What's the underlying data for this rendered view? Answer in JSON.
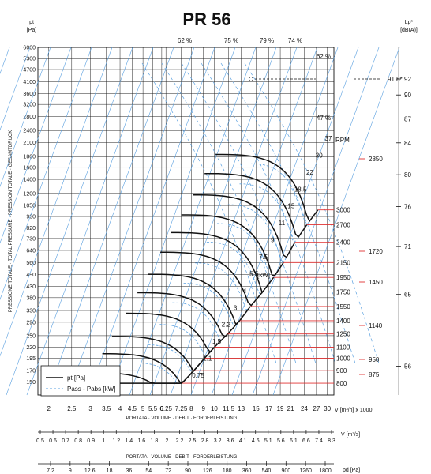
{
  "chart_data": {
    "type": "line",
    "title": "PR 56",
    "y_unit": "[Pa]",
    "y_label": "pt",
    "y_side_label": "PRESSIONE TOTALE · TOTAL PRESSURE · PRESSION TOTALE · GESAMTDRUCK",
    "y_ticks": [
      150,
      170,
      195,
      220,
      250,
      290,
      330,
      380,
      430,
      490,
      560,
      640,
      730,
      820,
      930,
      1050,
      1200,
      1400,
      1600,
      1800,
      2100,
      2400,
      2800,
      3200,
      3600,
      4100,
      4700,
      5300,
      6000
    ],
    "ylim": [
      130,
      6000
    ],
    "y_scale": "log",
    "x_unit": "V [m³/h] x 1000",
    "x_ticks": [
      2,
      2.5,
      3,
      3.5,
      4,
      4.5,
      5,
      5.5,
      6,
      6.25,
      7.25,
      8,
      9,
      10,
      11.5,
      13,
      15,
      17,
      19,
      21,
      24,
      27,
      30
    ],
    "xlim": [
      1.8,
      32
    ],
    "x_scale": "log",
    "x_label": "PORTATA · VOLUME · DEBIT · FORDERLEISTUNG",
    "axis2_unit": "V  [m³/s]",
    "axis2_label": "PORTATA · VOLUME · DEBIT · FORDERLEISTUNG",
    "axis2_ticks": [
      "0.5",
      "0.6",
      "0.7",
      "0.8",
      "0.9",
      "1",
      "1.2",
      "1.4",
      "1.6",
      "1.8",
      "2",
      "2.2",
      "2.5",
      "2.8",
      "3.2",
      "3.6",
      "4.1",
      "4.6",
      "5.1",
      "5.6",
      "6.1",
      "6.6",
      "7.4",
      "8.3"
    ],
    "axis3_unit": "pd  [Pa]",
    "axis3_ticks": [
      "7.2",
      "9",
      "12.6",
      "18",
      "36",
      "54",
      "72",
      "90",
      "126",
      "180",
      "360",
      "540",
      "900",
      "1260",
      "1800"
    ],
    "power_curves_kw": [
      "0.75",
      "1.1",
      "1.5",
      "2.2",
      "3",
      "4",
      "5.5",
      "7.5",
      "9",
      "11",
      "15",
      "18.5",
      "22",
      "30",
      "37"
    ],
    "power_unit": "[kW]",
    "rpm_label": "RPM",
    "rpm_values": [
      800,
      900,
      1000,
      1100,
      1250,
      1400,
      1550,
      1750,
      1950,
      2150,
      2400,
      2700,
      3000
    ],
    "rpm_tick_pa": [
      148,
      170,
      195,
      220,
      255,
      295,
      345,
      405,
      475,
      560,
      700,
      850,
      1000
    ],
    "rpm_points_x": [
      7.3,
      8.2,
      9.1,
      10.0,
      11.4,
      12.8,
      14.2,
      16.0,
      17.8,
      19.6,
      21.9,
      24.6,
      27.4
    ],
    "efficiency_labels": [
      "62 %",
      "75 %",
      "79 %",
      "74 %",
      "62 %",
      "47 %"
    ],
    "sound_label": "Lp*",
    "sound_unit": "[dB(A)]",
    "sound_ticks": [
      92,
      90,
      87,
      84,
      80,
      76,
      71,
      65,
      56
    ],
    "sound_marker": "91.8*",
    "motor_rpm_marks": [
      "2850",
      "1720",
      "1450",
      "1140",
      "950",
      "875"
    ],
    "legend": [
      "pt [Pa]",
      "Pass - Pabs [kW]"
    ],
    "series_colors": {
      "pressure": "#111111",
      "power": "#5aa0e0",
      "rpm": "#e03030",
      "efficiency": "#5aa0e0"
    }
  }
}
